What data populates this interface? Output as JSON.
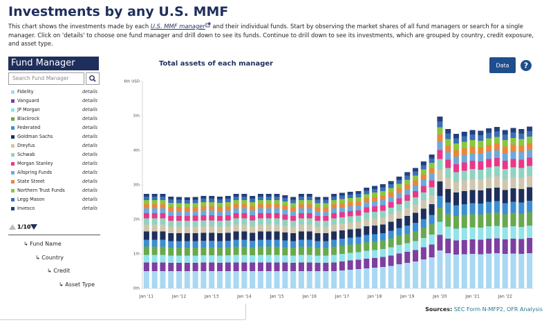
{
  "header": {
    "title": "Investments by any U.S. MMF",
    "description_before": "This chart shows the investments made by each",
    "link": "U.S. MMF manager",
    "description_after": "and their individual funds. Start by observing the market shares of all fund managers or search for a single manager. Click on 'details' to choose one fund manager and drill down to see its funds. Continue to drill down to see its investments, which are grouped by country, credit exposure, and asset type."
  },
  "sidebar": {
    "heading": "Fund Manager",
    "search_placeholder": "Search Fund Manager",
    "details_label": "details",
    "page": "1/10",
    "levels": [
      "Fund Name",
      "Country",
      "Credit",
      "Asset Type"
    ]
  },
  "chart_data": {
    "type": "stacked_bar",
    "title": "Total assets of each manager",
    "button": "Data",
    "help": "?",
    "sources_label": "Sources:",
    "sources_text": "SEC Form N-MFP2, OFR Analysis",
    "ylim": [
      0,
      6
    ],
    "yticks": [
      {
        "value": 0,
        "label": "0th"
      },
      {
        "value": 1,
        "label": "1th"
      },
      {
        "value": 2,
        "label": "2th"
      },
      {
        "value": 3,
        "label": "3th"
      },
      {
        "value": 4,
        "label": "4th"
      },
      {
        "value": 5,
        "label": "5th"
      },
      {
        "value": 6,
        "label": "6th USD"
      }
    ],
    "categories": [
      "Jan '11",
      null,
      null,
      null,
      "Jan '12",
      null,
      null,
      null,
      "Jan '13",
      null,
      null,
      null,
      "Jan '14",
      null,
      null,
      null,
      "Jan '15",
      null,
      null,
      null,
      "Jan '16",
      null,
      null,
      null,
      "Jan '17",
      null,
      null,
      null,
      "Jan '18",
      null,
      null,
      null,
      "Jan '19",
      null,
      null,
      null,
      "Jan '20",
      null,
      null,
      null,
      "Jan '21",
      null,
      null,
      null,
      "Jan '22",
      null,
      null,
      null
    ],
    "series": [
      {
        "name": "Fidelity",
        "color": "#a9d8f2",
        "values": [
          0.5,
          0.5,
          0.5,
          0.5,
          0.5,
          0.5,
          0.5,
          0.5,
          0.5,
          0.5,
          0.5,
          0.5,
          0.5,
          0.5,
          0.5,
          0.5,
          0.5,
          0.5,
          0.5,
          0.5,
          0.5,
          0.5,
          0.5,
          0.5,
          0.52,
          0.54,
          0.56,
          0.58,
          0.6,
          0.62,
          0.65,
          0.7,
          0.74,
          0.78,
          0.84,
          0.9,
          1.1,
          1.02,
          0.98,
          0.99,
          1.0,
          0.99,
          1.01,
          1.02,
          1.0,
          1.01,
          1.0,
          1.02
        ]
      },
      {
        "name": "Vanguard",
        "color": "#7d3fa0",
        "values": [
          0.25,
          0.25,
          0.25,
          0.24,
          0.24,
          0.24,
          0.24,
          0.25,
          0.25,
          0.24,
          0.25,
          0.25,
          0.25,
          0.25,
          0.25,
          0.25,
          0.25,
          0.25,
          0.24,
          0.25,
          0.25,
          0.24,
          0.24,
          0.25,
          0.26,
          0.27,
          0.27,
          0.28,
          0.28,
          0.29,
          0.3,
          0.31,
          0.32,
          0.33,
          0.35,
          0.37,
          0.45,
          0.42,
          0.41,
          0.41,
          0.42,
          0.42,
          0.43,
          0.43,
          0.42,
          0.43,
          0.43,
          0.44
        ]
      },
      {
        "name": "JP Morgan",
        "color": "#92e3ea",
        "values": [
          0.22,
          0.22,
          0.22,
          0.21,
          0.21,
          0.21,
          0.21,
          0.21,
          0.21,
          0.21,
          0.21,
          0.22,
          0.22,
          0.21,
          0.22,
          0.22,
          0.22,
          0.21,
          0.21,
          0.22,
          0.22,
          0.21,
          0.21,
          0.22,
          0.22,
          0.22,
          0.22,
          0.23,
          0.23,
          0.23,
          0.24,
          0.25,
          0.25,
          0.26,
          0.27,
          0.29,
          0.38,
          0.35,
          0.34,
          0.35,
          0.35,
          0.35,
          0.36,
          0.36,
          0.35,
          0.36,
          0.35,
          0.36
        ]
      },
      {
        "name": "Blackrock",
        "color": "#6aa84f",
        "values": [
          0.24,
          0.24,
          0.24,
          0.23,
          0.23,
          0.23,
          0.23,
          0.23,
          0.23,
          0.23,
          0.23,
          0.24,
          0.24,
          0.23,
          0.24,
          0.24,
          0.24,
          0.23,
          0.23,
          0.24,
          0.24,
          0.23,
          0.23,
          0.24,
          0.24,
          0.24,
          0.24,
          0.25,
          0.25,
          0.25,
          0.26,
          0.27,
          0.28,
          0.29,
          0.3,
          0.31,
          0.41,
          0.38,
          0.37,
          0.38,
          0.38,
          0.38,
          0.39,
          0.39,
          0.38,
          0.39,
          0.39,
          0.39
        ]
      },
      {
        "name": "Federated",
        "color": "#3c8fd2",
        "values": [
          0.2,
          0.2,
          0.2,
          0.19,
          0.19,
          0.19,
          0.19,
          0.19,
          0.19,
          0.19,
          0.19,
          0.2,
          0.2,
          0.19,
          0.2,
          0.2,
          0.2,
          0.2,
          0.19,
          0.2,
          0.2,
          0.19,
          0.19,
          0.2,
          0.2,
          0.2,
          0.2,
          0.21,
          0.21,
          0.21,
          0.22,
          0.22,
          0.23,
          0.24,
          0.25,
          0.26,
          0.34,
          0.32,
          0.31,
          0.31,
          0.32,
          0.32,
          0.32,
          0.33,
          0.32,
          0.32,
          0.32,
          0.33
        ]
      },
      {
        "name": "Goldman Sachs",
        "color": "#1f2f5c",
        "values": [
          0.24,
          0.24,
          0.24,
          0.23,
          0.23,
          0.23,
          0.23,
          0.23,
          0.23,
          0.23,
          0.23,
          0.24,
          0.24,
          0.23,
          0.24,
          0.24,
          0.24,
          0.23,
          0.23,
          0.24,
          0.24,
          0.23,
          0.23,
          0.24,
          0.24,
          0.24,
          0.24,
          0.25,
          0.25,
          0.25,
          0.26,
          0.27,
          0.28,
          0.29,
          0.3,
          0.31,
          0.42,
          0.39,
          0.37,
          0.38,
          0.38,
          0.38,
          0.39,
          0.39,
          0.38,
          0.39,
          0.39,
          0.39
        ]
      },
      {
        "name": "Dreyfus",
        "color": "#cfc6ad",
        "values": [
          0.2,
          0.2,
          0.2,
          0.19,
          0.19,
          0.19,
          0.19,
          0.19,
          0.19,
          0.19,
          0.19,
          0.2,
          0.2,
          0.19,
          0.2,
          0.2,
          0.2,
          0.2,
          0.19,
          0.2,
          0.2,
          0.19,
          0.19,
          0.2,
          0.2,
          0.2,
          0.2,
          0.21,
          0.21,
          0.21,
          0.22,
          0.22,
          0.23,
          0.24,
          0.25,
          0.26,
          0.34,
          0.32,
          0.31,
          0.31,
          0.32,
          0.32,
          0.32,
          0.33,
          0.32,
          0.32,
          0.32,
          0.33
        ]
      },
      {
        "name": "Schwab",
        "color": "#8fd3c1",
        "values": [
          0.18,
          0.18,
          0.18,
          0.17,
          0.17,
          0.17,
          0.17,
          0.17,
          0.17,
          0.17,
          0.17,
          0.18,
          0.18,
          0.17,
          0.18,
          0.18,
          0.18,
          0.17,
          0.17,
          0.18,
          0.18,
          0.17,
          0.17,
          0.18,
          0.18,
          0.18,
          0.18,
          0.19,
          0.19,
          0.19,
          0.19,
          0.2,
          0.21,
          0.21,
          0.22,
          0.23,
          0.31,
          0.29,
          0.28,
          0.28,
          0.29,
          0.28,
          0.29,
          0.29,
          0.29,
          0.29,
          0.29,
          0.29
        ]
      },
      {
        "name": "Morgan Stanley",
        "color": "#e8388a",
        "values": [
          0.15,
          0.15,
          0.15,
          0.14,
          0.14,
          0.14,
          0.15,
          0.15,
          0.15,
          0.14,
          0.15,
          0.15,
          0.15,
          0.15,
          0.15,
          0.15,
          0.15,
          0.15,
          0.14,
          0.15,
          0.15,
          0.14,
          0.14,
          0.15,
          0.15,
          0.15,
          0.15,
          0.15,
          0.16,
          0.16,
          0.16,
          0.17,
          0.17,
          0.18,
          0.19,
          0.2,
          0.26,
          0.24,
          0.23,
          0.24,
          0.24,
          0.24,
          0.24,
          0.24,
          0.24,
          0.24,
          0.24,
          0.24
        ]
      },
      {
        "name": "Allspring Funds",
        "color": "#6fa9dc",
        "values": [
          0.14,
          0.14,
          0.14,
          0.14,
          0.14,
          0.13,
          0.13,
          0.14,
          0.14,
          0.14,
          0.14,
          0.14,
          0.14,
          0.14,
          0.14,
          0.14,
          0.14,
          0.14,
          0.13,
          0.14,
          0.14,
          0.13,
          0.13,
          0.14,
          0.14,
          0.14,
          0.14,
          0.14,
          0.15,
          0.15,
          0.15,
          0.16,
          0.16,
          0.17,
          0.18,
          0.19,
          0.24,
          0.22,
          0.22,
          0.22,
          0.22,
          0.22,
          0.22,
          0.22,
          0.22,
          0.22,
          0.22,
          0.22
        ]
      },
      {
        "name": "State Street",
        "color": "#e8873c",
        "values": [
          0.12,
          0.12,
          0.12,
          0.12,
          0.12,
          0.12,
          0.12,
          0.12,
          0.12,
          0.12,
          0.12,
          0.12,
          0.12,
          0.12,
          0.12,
          0.12,
          0.12,
          0.12,
          0.12,
          0.12,
          0.12,
          0.12,
          0.12,
          0.12,
          0.12,
          0.12,
          0.12,
          0.12,
          0.12,
          0.13,
          0.13,
          0.13,
          0.14,
          0.14,
          0.15,
          0.16,
          0.21,
          0.19,
          0.19,
          0.19,
          0.19,
          0.19,
          0.19,
          0.2,
          0.19,
          0.2,
          0.19,
          0.2
        ]
      },
      {
        "name": "Northern Trust Funds",
        "color": "#8cc63f",
        "values": [
          0.12,
          0.12,
          0.12,
          0.12,
          0.11,
          0.11,
          0.11,
          0.12,
          0.12,
          0.12,
          0.12,
          0.12,
          0.12,
          0.12,
          0.12,
          0.12,
          0.12,
          0.12,
          0.12,
          0.12,
          0.12,
          0.12,
          0.12,
          0.12,
          0.12,
          0.12,
          0.12,
          0.12,
          0.13,
          0.13,
          0.13,
          0.13,
          0.14,
          0.14,
          0.15,
          0.16,
          0.21,
          0.19,
          0.19,
          0.19,
          0.19,
          0.19,
          0.19,
          0.19,
          0.19,
          0.19,
          0.19,
          0.19
        ]
      },
      {
        "name": "Legg Mason",
        "color": "#3b6fb6",
        "values": [
          0.1,
          0.1,
          0.1,
          0.1,
          0.1,
          0.1,
          0.1,
          0.1,
          0.1,
          0.1,
          0.1,
          0.1,
          0.1,
          0.1,
          0.1,
          0.1,
          0.1,
          0.1,
          0.1,
          0.1,
          0.1,
          0.1,
          0.1,
          0.1,
          0.1,
          0.1,
          0.1,
          0.1,
          0.1,
          0.11,
          0.11,
          0.11,
          0.12,
          0.12,
          0.12,
          0.13,
          0.17,
          0.16,
          0.15,
          0.16,
          0.16,
          0.16,
          0.16,
          0.16,
          0.16,
          0.16,
          0.16,
          0.16
        ]
      },
      {
        "name": "Invesco",
        "color": "#24407a",
        "values": [
          0.08,
          0.08,
          0.08,
          0.08,
          0.08,
          0.08,
          0.08,
          0.08,
          0.08,
          0.08,
          0.08,
          0.08,
          0.08,
          0.08,
          0.08,
          0.08,
          0.08,
          0.08,
          0.08,
          0.08,
          0.08,
          0.08,
          0.08,
          0.08,
          0.08,
          0.08,
          0.08,
          0.09,
          0.09,
          0.09,
          0.09,
          0.1,
          0.1,
          0.1,
          0.11,
          0.11,
          0.14,
          0.13,
          0.13,
          0.13,
          0.13,
          0.13,
          0.13,
          0.13,
          0.13,
          0.13,
          0.13,
          0.13
        ]
      }
    ]
  }
}
